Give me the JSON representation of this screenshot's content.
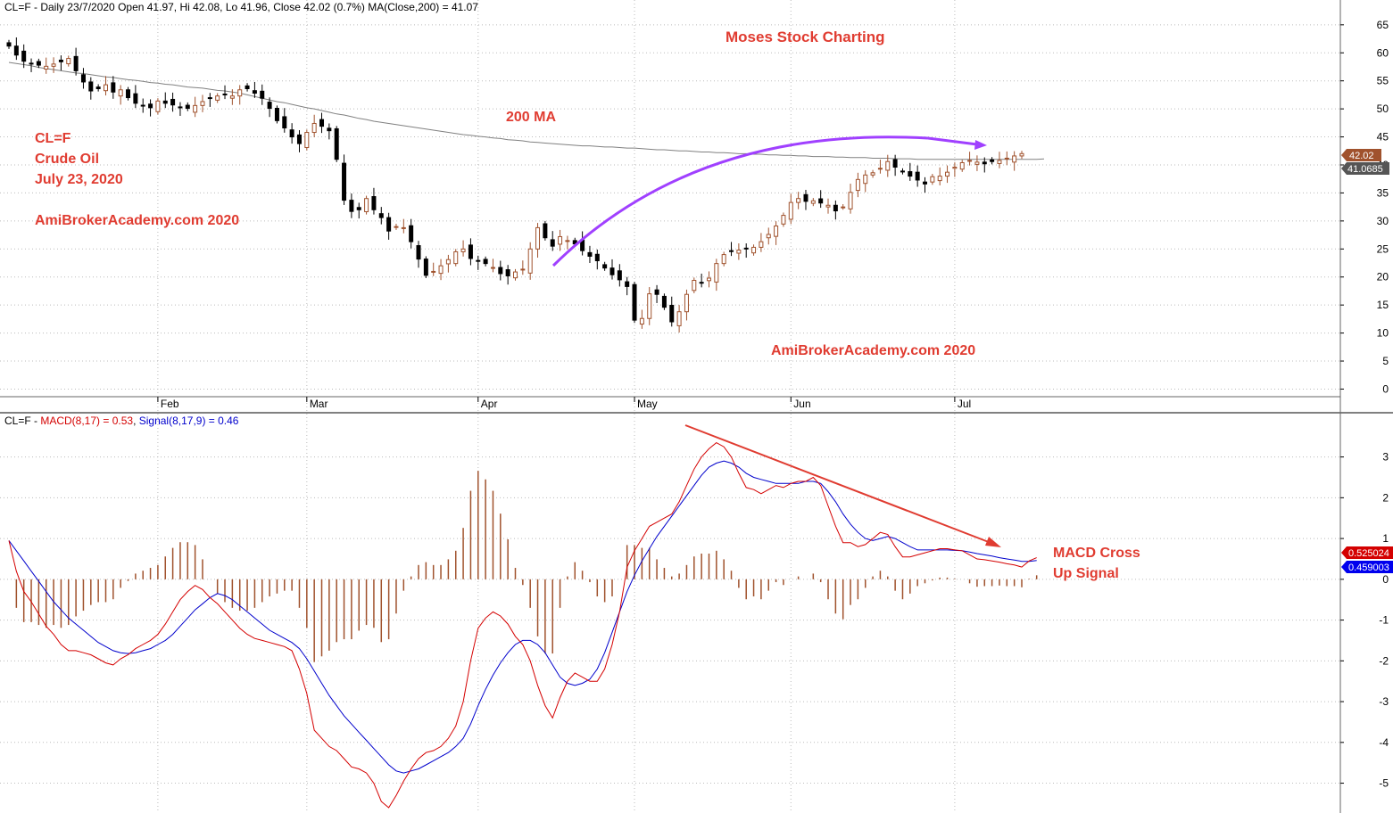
{
  "price_header": "CL=F - Daily 23/7/2020 Open 41.97, Hi 42.08, Lo 41.96, Close 42.02 (0.7%) MA(Close,200) = 41.07",
  "macd_header": {
    "prefix": "CL=F - ",
    "macd": "MACD(8,17) = 0.53",
    "sep": ", ",
    "signal": "Signal(8,17,9) = 0.46"
  },
  "annotations": {
    "moses": "Moses Stock Charting",
    "ma_label": "200 MA",
    "ticker": "CL=F",
    "name": "Crude Oil",
    "date": "July 23, 2020",
    "watermark1": "AmiBrokerAcademy.com  2020",
    "watermark2": "AmiBrokerAcademy.com  2020",
    "macd_cross_1": "MACD Cross",
    "macd_cross_2": "Up Signal"
  },
  "badges": {
    "close": "42.02",
    "ma": "41.0685",
    "macd": "0.525024",
    "signal": "0.459003"
  },
  "colors": {
    "macd_line": "#d40000",
    "signal_line": "#0000cc",
    "histogram": "#a0522d",
    "ma_line": "#808080",
    "annotation": "#e03c31",
    "arc_arrow": "#a040ff",
    "up_candle": "#a0522d",
    "down_candle": "#000000",
    "close_badge": "#a0522d",
    "ma_badge": "#555555",
    "macd_badge": "#d40000",
    "signal_badge": "#0000ee"
  },
  "chart_data": [
    {
      "type": "candlestick",
      "title": "CL=F - Daily 23/7/2020 Open 41.97, Hi 42.08, Lo 41.96, Close 42.02 (0.7%) MA(Close,200) = 41.07",
      "x_ticks": [
        "Feb",
        "Mar",
        "Apr",
        "May",
        "Jun",
        "Jul"
      ],
      "y_ticks": [
        0,
        5,
        10,
        15,
        20,
        25,
        30,
        35,
        40,
        45,
        50,
        55,
        60,
        65
      ],
      "ylim": [
        -1.2,
        67.2
      ],
      "x_range": [
        0,
        140
      ],
      "month_start_index": [
        20,
        40,
        63,
        84,
        105,
        127
      ],
      "close": [
        61.2,
        59.6,
        58.5,
        58.1,
        57.8,
        57.6,
        58.0,
        58.4,
        59.0,
        56.8,
        54.8,
        53.2,
        53.6,
        54.3,
        53.0,
        53.4,
        52.0,
        51.0,
        50.5,
        50.2,
        51.4,
        51.0,
        50.7,
        50.3,
        50.1,
        50.6,
        51.3,
        51.9,
        52.3,
        52.6,
        52.3,
        53.4,
        53.6,
        52.8,
        51.9,
        50.1,
        47.9,
        46.6,
        45.0,
        43.8,
        45.8,
        47.4,
        46.9,
        46.1,
        41.0,
        33.7,
        31.7,
        32.0,
        34.0,
        32.0,
        30.6,
        28.2,
        29.0,
        28.8,
        26.3,
        23.2,
        20.3,
        21.0,
        22.0,
        23.1,
        24.5,
        25.0,
        23.3,
        22.8,
        22.4,
        21.7,
        20.6,
        20.2,
        20.9,
        21.4,
        25.0,
        28.8,
        27.0,
        25.5,
        27.2,
        26.5,
        25.9,
        24.7,
        23.7,
        22.9,
        21.6,
        20.4,
        19.5,
        18.3,
        12.3,
        12.6,
        17.0,
        16.9,
        14.6,
        12.0,
        13.8,
        16.9,
        19.4,
        19.0,
        19.8,
        22.4,
        24.0,
        24.6,
        24.8,
        25.0,
        25.3,
        26.3,
        27.6,
        29.1,
        31.0,
        33.3,
        34.0,
        33.5,
        33.6,
        33.2,
        32.8,
        31.8,
        32.5,
        35.1,
        37.4,
        38.2,
        38.6,
        39.4,
        40.6,
        39.6,
        38.8,
        38.0,
        37.3,
        36.6,
        37.9,
        38.0,
        38.7,
        39.6,
        40.4,
        40.8,
        40.5,
        40.2,
        40.6,
        40.8,
        41.2,
        41.6,
        42.02
      ],
      "series": [
        {
          "name": "MA(Close,200)",
          "values": [
            58.3,
            58.1,
            57.9,
            57.7,
            57.4,
            57.2,
            57.0,
            56.8,
            56.6,
            56.4,
            56.3,
            56.1,
            55.9,
            55.7,
            55.6,
            55.4,
            55.2,
            55.1,
            54.9,
            54.7,
            54.6,
            54.4,
            54.3,
            54.1,
            53.9,
            53.8,
            53.7,
            53.5,
            53.3,
            53.2,
            53.0,
            52.8,
            52.5,
            52.2,
            51.9,
            51.6,
            51.3,
            51.1,
            50.8,
            50.5,
            50.2,
            50.0,
            49.7,
            49.4,
            49.1,
            48.9,
            48.6,
            48.3,
            48.1,
            47.8,
            47.6,
            47.4,
            47.2,
            47.0,
            46.8,
            46.6,
            46.4,
            46.2,
            46.0,
            45.8,
            45.6,
            45.4,
            45.3,
            45.1,
            45.0,
            44.8,
            44.7,
            44.5,
            44.4,
            44.3,
            44.1,
            44.0,
            43.9,
            43.8,
            43.7,
            43.6,
            43.5,
            43.4,
            43.4,
            43.3,
            43.2,
            43.2,
            43.1,
            43.0,
            43.0,
            42.9,
            42.8,
            42.7,
            42.7,
            42.6,
            42.5,
            42.5,
            42.4,
            42.3,
            42.3,
            42.2,
            42.2,
            42.1,
            42.0,
            42.0,
            41.9,
            41.9,
            41.8,
            41.8,
            41.7,
            41.7,
            41.6,
            41.6,
            41.5,
            41.5,
            41.5,
            41.4,
            41.4,
            41.3,
            41.3,
            41.3,
            41.2,
            41.2,
            41.2,
            41.1,
            41.1,
            41.1,
            41.0,
            41.0,
            41.0,
            41.0,
            41.0,
            41.0,
            41.0,
            41.0,
            41.0,
            41.0,
            41.0,
            41.0,
            41.0,
            41.0,
            41.0,
            41.0,
            41.0,
            41.07
          ]
        }
      ]
    },
    {
      "type": "line",
      "title": "MACD(8,17) = 0.53, Signal(8,17,9) = 0.46",
      "y_ticks": [
        -5,
        -4,
        -3,
        -2,
        -1,
        0,
        1,
        2,
        3
      ],
      "ylim": [
        -5.6,
        3.8
      ],
      "x_range": [
        0,
        140
      ],
      "series": [
        {
          "name": "MACD(8,17)",
          "values": [
            0.95,
            0.2,
            -0.3,
            -0.55,
            -0.85,
            -1.15,
            -1.35,
            -1.6,
            -1.75,
            -1.75,
            -1.8,
            -1.85,
            -1.95,
            -2.05,
            -2.1,
            -1.95,
            -1.85,
            -1.7,
            -1.6,
            -1.5,
            -1.35,
            -1.1,
            -0.8,
            -0.5,
            -0.3,
            -0.15,
            -0.25,
            -0.45,
            -0.6,
            -0.8,
            -1.0,
            -1.2,
            -1.35,
            -1.45,
            -1.5,
            -1.55,
            -1.6,
            -1.65,
            -1.75,
            -2.2,
            -2.8,
            -3.7,
            -3.9,
            -4.1,
            -4.2,
            -4.4,
            -4.6,
            -4.65,
            -4.75,
            -5.0,
            -5.45,
            -5.6,
            -5.3,
            -4.95,
            -4.65,
            -4.4,
            -4.25,
            -4.2,
            -4.1,
            -3.9,
            -3.6,
            -3.0,
            -2.0,
            -1.2,
            -0.95,
            -0.8,
            -0.9,
            -1.1,
            -1.4,
            -1.6,
            -2.0,
            -2.6,
            -3.1,
            -3.4,
            -2.9,
            -2.5,
            -2.3,
            -2.4,
            -2.5,
            -2.5,
            -2.2,
            -1.6,
            -0.8,
            0.3,
            0.7,
            1.0,
            1.3,
            1.4,
            1.5,
            1.6,
            1.9,
            2.3,
            2.7,
            3.0,
            3.2,
            3.35,
            3.25,
            3.0,
            2.6,
            2.25,
            2.2,
            2.1,
            2.2,
            2.3,
            2.25,
            2.35,
            2.4,
            2.4,
            2.5,
            2.3,
            1.8,
            1.3,
            0.9,
            0.9,
            0.8,
            0.85,
            1.0,
            1.15,
            1.1,
            0.8,
            0.55,
            0.55,
            0.6,
            0.65,
            0.7,
            0.75,
            0.75,
            0.72,
            0.7,
            0.6,
            0.5,
            0.48,
            0.45,
            0.42,
            0.38,
            0.35,
            0.3,
            0.45,
            0.53
          ]
        },
        {
          "name": "Signal(8,17,9)",
          "values": [
            0.95,
            0.7,
            0.45,
            0.2,
            -0.05,
            -0.3,
            -0.55,
            -0.75,
            -0.95,
            -1.1,
            -1.25,
            -1.4,
            -1.55,
            -1.65,
            -1.75,
            -1.8,
            -1.82,
            -1.8,
            -1.75,
            -1.7,
            -1.6,
            -1.5,
            -1.35,
            -1.15,
            -0.95,
            -0.75,
            -0.6,
            -0.45,
            -0.35,
            -0.4,
            -0.5,
            -0.65,
            -0.8,
            -0.95,
            -1.1,
            -1.25,
            -1.35,
            -1.45,
            -1.55,
            -1.7,
            -1.95,
            -2.25,
            -2.55,
            -2.85,
            -3.1,
            -3.35,
            -3.55,
            -3.75,
            -3.95,
            -4.15,
            -4.35,
            -4.55,
            -4.7,
            -4.75,
            -4.7,
            -4.65,
            -4.55,
            -4.45,
            -4.35,
            -4.25,
            -4.1,
            -3.9,
            -3.55,
            -3.1,
            -2.7,
            -2.35,
            -2.05,
            -1.8,
            -1.6,
            -1.5,
            -1.5,
            -1.6,
            -1.8,
            -2.1,
            -2.4,
            -2.55,
            -2.6,
            -2.55,
            -2.45,
            -2.2,
            -1.8,
            -1.3,
            -0.8,
            -0.3,
            0.1,
            0.45,
            0.75,
            1.05,
            1.3,
            1.55,
            1.8,
            2.05,
            2.3,
            2.55,
            2.75,
            2.85,
            2.9,
            2.85,
            2.75,
            2.6,
            2.5,
            2.45,
            2.4,
            2.35,
            2.35,
            2.35,
            2.35,
            2.4,
            2.4,
            2.35,
            2.15,
            1.9,
            1.6,
            1.35,
            1.15,
            1.0,
            0.95,
            1.0,
            1.05,
            1.0,
            0.9,
            0.8,
            0.72,
            0.72,
            0.72,
            0.72,
            0.72,
            0.71,
            0.7,
            0.67,
            0.63,
            0.6,
            0.57,
            0.53,
            0.5,
            0.47,
            0.44,
            0.44,
            0.46
          ]
        }
      ]
    }
  ]
}
